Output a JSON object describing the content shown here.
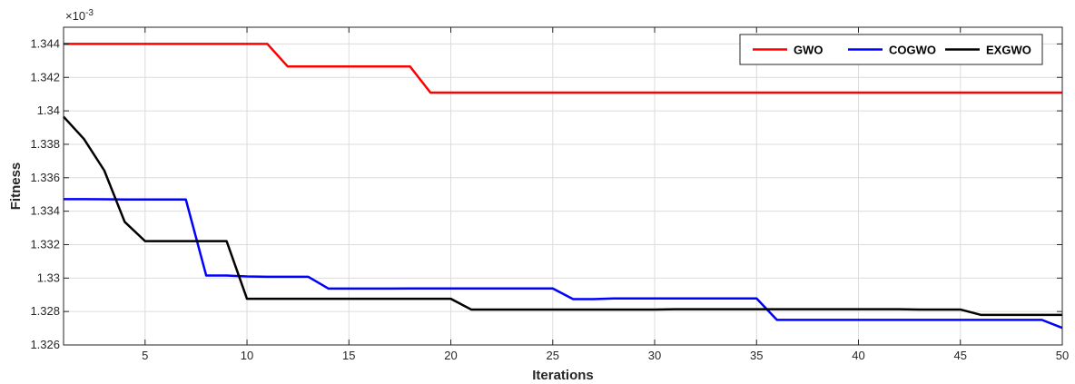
{
  "chart_data": {
    "type": "line",
    "title": "",
    "xlabel": "Iterations",
    "ylabel": "Fitness",
    "y_exponent_label": "×10",
    "y_exponent_power": "-3",
    "xlim": [
      1,
      50
    ],
    "ylim": [
      1.326,
      1.345
    ],
    "xticks": [
      5,
      10,
      15,
      20,
      25,
      30,
      35,
      40,
      45,
      50
    ],
    "xtick_labels": [
      "5",
      "10",
      "15",
      "20",
      "25",
      "30",
      "35",
      "40",
      "45",
      "50"
    ],
    "yticks": [
      1.326,
      1.328,
      1.33,
      1.332,
      1.334,
      1.336,
      1.338,
      1.34,
      1.342,
      1.344
    ],
    "ytick_labels": [
      "1.326",
      "1.328",
      "1.33",
      "1.332",
      "1.334",
      "1.336",
      "1.338",
      "1.34",
      "1.342",
      "1.344"
    ],
    "grid": true,
    "legend_placement": "top-right",
    "legend_orientation": "horizontal",
    "x": [
      1,
      2,
      3,
      4,
      5,
      6,
      7,
      8,
      9,
      10,
      11,
      12,
      13,
      14,
      15,
      16,
      17,
      18,
      19,
      20,
      21,
      22,
      23,
      24,
      25,
      26,
      27,
      28,
      29,
      30,
      31,
      32,
      33,
      34,
      35,
      36,
      37,
      38,
      39,
      40,
      41,
      42,
      43,
      44,
      45,
      46,
      47,
      48,
      49,
      50
    ],
    "series": [
      {
        "name": "GWO",
        "color": "#ff0000",
        "values": [
          1.344,
          1.344,
          1.344,
          1.344,
          1.344,
          1.344,
          1.344,
          1.344,
          1.344,
          1.344,
          1.344,
          1.34265,
          1.34265,
          1.34265,
          1.34265,
          1.34265,
          1.34265,
          1.34265,
          1.34109,
          1.34109,
          1.34109,
          1.34109,
          1.34109,
          1.34109,
          1.34109,
          1.34109,
          1.34109,
          1.34109,
          1.34109,
          1.34109,
          1.34109,
          1.34109,
          1.34109,
          1.34109,
          1.34109,
          1.34109,
          1.34109,
          1.34109,
          1.34109,
          1.34109,
          1.34109,
          1.34109,
          1.34109,
          1.34109,
          1.34109,
          1.34109,
          1.34109,
          1.34109,
          1.34109,
          1.34109
        ]
      },
      {
        "name": "COGWO",
        "color": "#0000ff",
        "values": [
          1.33472,
          1.33472,
          1.33471,
          1.3347,
          1.3347,
          1.3347,
          1.3347,
          1.33015,
          1.33015,
          1.3301,
          1.33008,
          1.33008,
          1.33008,
          1.32937,
          1.32937,
          1.32937,
          1.32937,
          1.32938,
          1.32938,
          1.32938,
          1.32938,
          1.32938,
          1.32938,
          1.32938,
          1.32938,
          1.32874,
          1.32874,
          1.32878,
          1.32878,
          1.32878,
          1.32878,
          1.32878,
          1.32878,
          1.32878,
          1.32878,
          1.3275,
          1.3275,
          1.3275,
          1.3275,
          1.3275,
          1.3275,
          1.3275,
          1.3275,
          1.3275,
          1.3275,
          1.3275,
          1.3275,
          1.3275,
          1.3275,
          1.32702
        ]
      },
      {
        "name": "EXGWO",
        "color": "#000000",
        "values": [
          1.33965,
          1.33832,
          1.33643,
          1.33336,
          1.33221,
          1.33221,
          1.33221,
          1.33221,
          1.33221,
          1.32876,
          1.32876,
          1.32876,
          1.32876,
          1.32876,
          1.32876,
          1.32876,
          1.32876,
          1.32876,
          1.32876,
          1.32876,
          1.32812,
          1.32812,
          1.32812,
          1.32812,
          1.32812,
          1.32812,
          1.32812,
          1.32812,
          1.32812,
          1.32812,
          1.32814,
          1.32814,
          1.32814,
          1.32814,
          1.32814,
          1.32814,
          1.32814,
          1.32814,
          1.32814,
          1.32814,
          1.32814,
          1.32814,
          1.32812,
          1.32812,
          1.32812,
          1.3278,
          1.3278,
          1.3278,
          1.3278,
          1.3278
        ]
      }
    ]
  }
}
